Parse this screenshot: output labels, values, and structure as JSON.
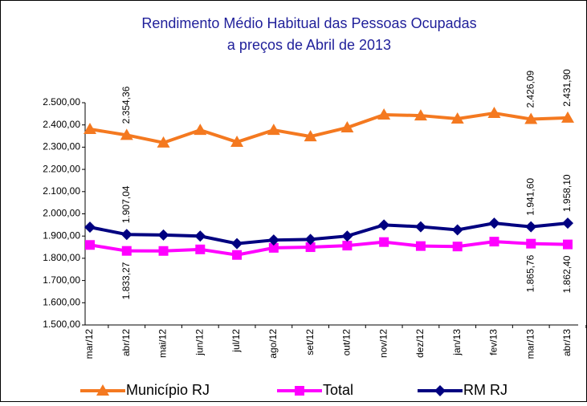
{
  "chart_data": {
    "type": "line",
    "title": [
      "Rendimento Médio Habitual das Pessoas Ocupadas",
      "a preços de Abril de 2013"
    ],
    "categories": [
      "mar/12",
      "abr/12",
      "mai/12",
      "jun/12",
      "jul/12",
      "ago/12",
      "set/12",
      "out/12",
      "nov/12",
      "dez/12",
      "jan/13",
      "fev/13",
      "mar/13",
      "abr/13"
    ],
    "series": [
      {
        "name": "Município RJ",
        "color": "#f47920",
        "marker": "triangle",
        "values": [
          2381,
          2354.36,
          2320,
          2377,
          2323,
          2377,
          2348,
          2388,
          2446,
          2442,
          2428,
          2453,
          2426.09,
          2431.9
        ],
        "value_labels": [
          null,
          "2.354,36",
          null,
          null,
          null,
          null,
          null,
          null,
          null,
          null,
          null,
          null,
          "2.426,09",
          "2.431,90"
        ]
      },
      {
        "name": "Total",
        "color": "#ff00ff",
        "marker": "square",
        "values": [
          1860,
          1833.27,
          1833,
          1840,
          1815,
          1847,
          1850,
          1857,
          1873,
          1855,
          1853,
          1875,
          1865.76,
          1862.4
        ],
        "value_labels": [
          null,
          "1.833,27",
          null,
          null,
          null,
          null,
          null,
          null,
          null,
          null,
          null,
          null,
          "1.865,76",
          "1.862,40"
        ]
      },
      {
        "name": "RM RJ",
        "color": "#000080",
        "marker": "diamond",
        "values": [
          1940,
          1907.04,
          1905,
          1900,
          1866,
          1882,
          1885,
          1900,
          1950,
          1942,
          1928,
          1958,
          1941.6,
          1958.1
        ],
        "value_labels": [
          null,
          "1.907,04",
          null,
          null,
          null,
          null,
          null,
          null,
          null,
          null,
          null,
          null,
          "1.941,60",
          "1.958,10"
        ]
      }
    ],
    "ylim": [
      1500,
      2500
    ],
    "yticks": [
      {
        "value": 1500,
        "label": "1.500,00"
      },
      {
        "value": 1600,
        "label": "1.600,00"
      },
      {
        "value": 1700,
        "label": "1.700,00"
      },
      {
        "value": 1800,
        "label": "1.800,00"
      },
      {
        "value": 1900,
        "label": "1.900,00"
      },
      {
        "value": 2000,
        "label": "2.000,00"
      },
      {
        "value": 2100,
        "label": "2.100,00"
      },
      {
        "value": 2200,
        "label": "2.200,00"
      },
      {
        "value": 2300,
        "label": "2.300,00"
      },
      {
        "value": 2400,
        "label": "2.400,00"
      },
      {
        "value": 2500,
        "label": "2.500,00"
      }
    ],
    "grid": false,
    "legend": "bottom"
  }
}
